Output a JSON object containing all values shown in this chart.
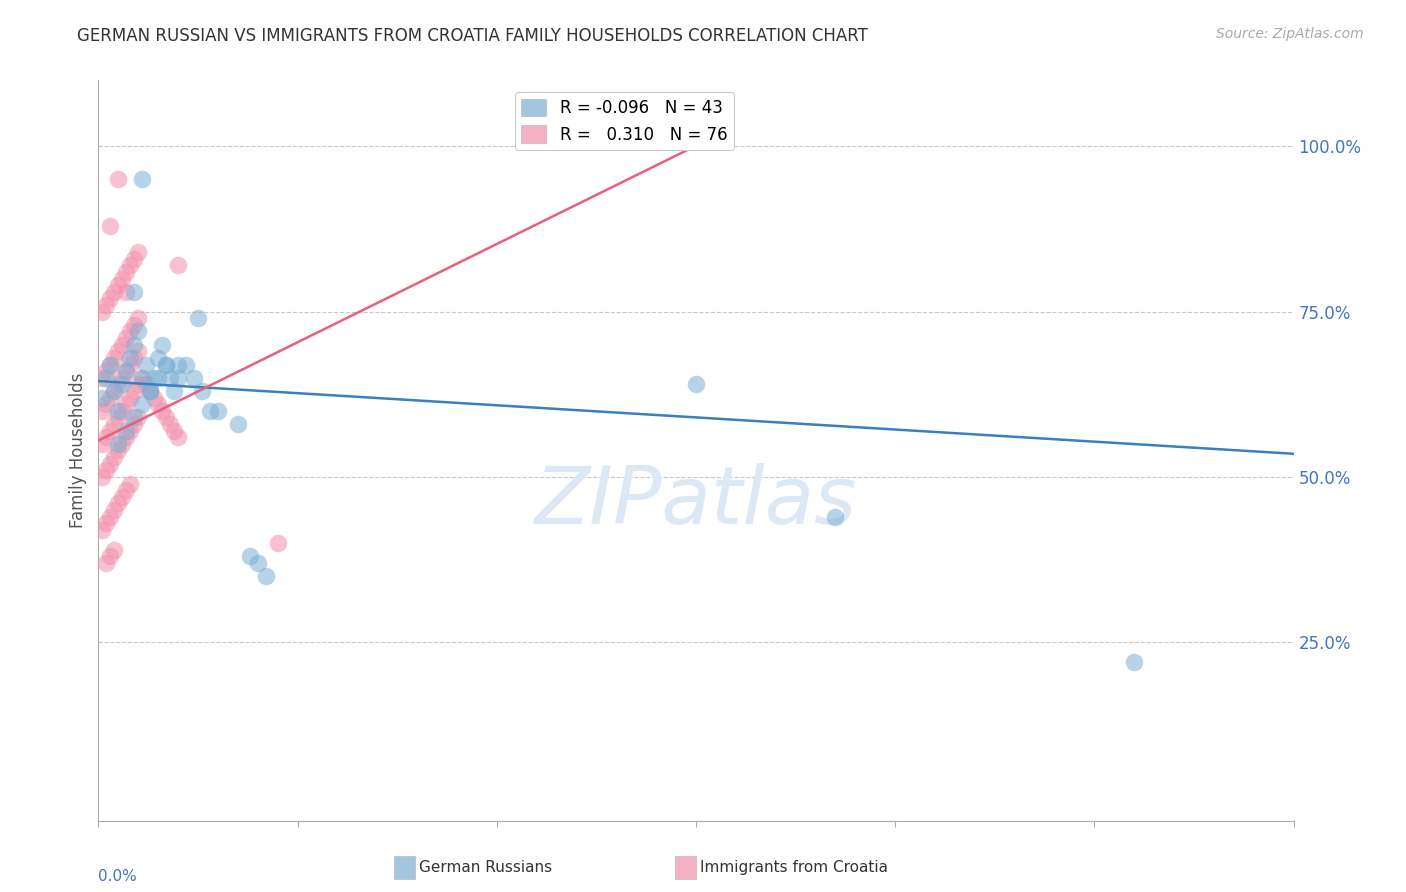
{
  "title": "GERMAN RUSSIAN VS IMMIGRANTS FROM CROATIA FAMILY HOUSEHOLDS CORRELATION CHART",
  "source": "Source: ZipAtlas.com",
  "ylabel": "Family Households",
  "right_yticks": [
    "100.0%",
    "75.0%",
    "50.0%",
    "25.0%"
  ],
  "right_ytick_vals": [
    1.0,
    0.75,
    0.5,
    0.25
  ],
  "watermark": "ZIPatlas",
  "blue_scatter_x": [
    0.001,
    0.002,
    0.003,
    0.004,
    0.005,
    0.006,
    0.007,
    0.008,
    0.009,
    0.01,
    0.011,
    0.012,
    0.013,
    0.014,
    0.015,
    0.016,
    0.017,
    0.018,
    0.019,
    0.02,
    0.022,
    0.024,
    0.026,
    0.028,
    0.03,
    0.035,
    0.038,
    0.04,
    0.042,
    0.005,
    0.007,
    0.009,
    0.011,
    0.013,
    0.015,
    0.017,
    0.02,
    0.025,
    0.009,
    0.011,
    0.15,
    0.185,
    0.26
  ],
  "blue_scatter_y": [
    0.62,
    0.65,
    0.67,
    0.63,
    0.6,
    0.64,
    0.66,
    0.68,
    0.7,
    0.72,
    0.65,
    0.67,
    0.63,
    0.65,
    0.68,
    0.7,
    0.67,
    0.65,
    0.63,
    0.65,
    0.67,
    0.65,
    0.63,
    0.6,
    0.6,
    0.58,
    0.38,
    0.37,
    0.35,
    0.55,
    0.57,
    0.59,
    0.61,
    0.63,
    0.65,
    0.67,
    0.67,
    0.74,
    0.78,
    0.95,
    0.64,
    0.44,
    0.22
  ],
  "pink_scatter_x": [
    0.001,
    0.002,
    0.003,
    0.004,
    0.005,
    0.006,
    0.007,
    0.008,
    0.009,
    0.01,
    0.001,
    0.002,
    0.003,
    0.004,
    0.005,
    0.006,
    0.007,
    0.008,
    0.009,
    0.01,
    0.001,
    0.002,
    0.003,
    0.004,
    0.005,
    0.006,
    0.007,
    0.008,
    0.009,
    0.01,
    0.001,
    0.002,
    0.003,
    0.004,
    0.005,
    0.006,
    0.007,
    0.008,
    0.009,
    0.01,
    0.001,
    0.002,
    0.003,
    0.004,
    0.005,
    0.006,
    0.007,
    0.008,
    0.009,
    0.01,
    0.011,
    0.012,
    0.013,
    0.014,
    0.015,
    0.016,
    0.017,
    0.018,
    0.019,
    0.02,
    0.001,
    0.002,
    0.003,
    0.004,
    0.005,
    0.006,
    0.007,
    0.008,
    0.003,
    0.005,
    0.002,
    0.003,
    0.004,
    0.02,
    0.045,
    0.007
  ],
  "pink_scatter_y": [
    0.65,
    0.66,
    0.67,
    0.68,
    0.69,
    0.7,
    0.71,
    0.72,
    0.73,
    0.74,
    0.75,
    0.76,
    0.77,
    0.78,
    0.79,
    0.8,
    0.81,
    0.82,
    0.83,
    0.84,
    0.6,
    0.61,
    0.62,
    0.63,
    0.64,
    0.65,
    0.66,
    0.67,
    0.68,
    0.69,
    0.55,
    0.56,
    0.57,
    0.58,
    0.59,
    0.6,
    0.61,
    0.62,
    0.63,
    0.64,
    0.5,
    0.51,
    0.52,
    0.53,
    0.54,
    0.55,
    0.56,
    0.57,
    0.58,
    0.59,
    0.65,
    0.64,
    0.63,
    0.62,
    0.61,
    0.6,
    0.59,
    0.58,
    0.57,
    0.56,
    0.42,
    0.43,
    0.44,
    0.45,
    0.46,
    0.47,
    0.48,
    0.49,
    0.88,
    0.95,
    0.37,
    0.38,
    0.39,
    0.82,
    0.4,
    0.78
  ],
  "blue_line_x": [
    0.0,
    0.3
  ],
  "blue_line_y": [
    0.645,
    0.535
  ],
  "pink_line_x": [
    0.0,
    0.148
  ],
  "pink_line_y": [
    0.555,
    0.995
  ],
  "xlim": [
    0.0,
    0.3
  ],
  "ylim": [
    -0.02,
    1.1
  ],
  "blue_color": "#7bafd4",
  "pink_color": "#f28fac",
  "blue_line_color": "#3a7fc1",
  "pink_line_color": "#e8607a",
  "title_color": "#333333",
  "axis_color": "#4472c4",
  "grid_color": "#c8c8c8",
  "background_color": "#ffffff",
  "watermark_color": "#dce8f5"
}
